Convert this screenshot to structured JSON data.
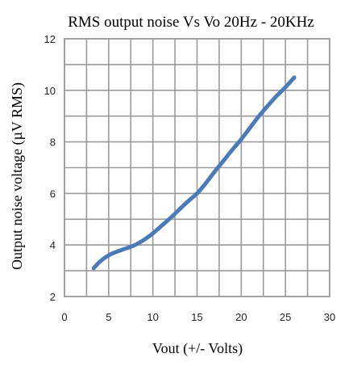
{
  "chart_data": {
    "type": "line",
    "title": "RMS output noise Vs Vo 20Hz - 20KHz",
    "xlabel": "Vout (+/- Volts)",
    "ylabel": "Output noise voltage (µV RMS)",
    "xlim": [
      0,
      30
    ],
    "ylim": [
      2,
      12
    ],
    "xticks": [
      0,
      5,
      10,
      15,
      20,
      25,
      30
    ],
    "yticks": [
      2,
      4,
      6,
      8,
      10,
      12
    ],
    "grid": true,
    "legend": "none",
    "series": [
      {
        "color": "#4a7ab8",
        "x": [
          3.3,
          4,
          5,
          6,
          7,
          8,
          9,
          10,
          11,
          12,
          13,
          14,
          15,
          16,
          17,
          18,
          19,
          20,
          21,
          22,
          23,
          24,
          25,
          26
        ],
        "y": [
          3.1,
          3.35,
          3.6,
          3.75,
          3.87,
          4.0,
          4.2,
          4.45,
          4.75,
          5.05,
          5.38,
          5.7,
          6.0,
          6.4,
          6.85,
          7.27,
          7.7,
          8.1,
          8.55,
          9.0,
          9.4,
          9.78,
          10.12,
          10.5
        ]
      }
    ]
  }
}
